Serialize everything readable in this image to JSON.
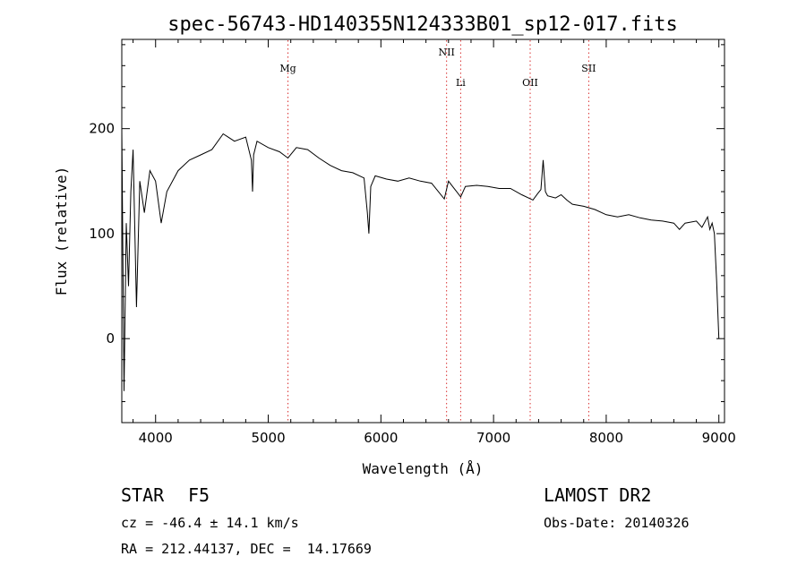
{
  "chart_data": {
    "type": "line",
    "title": "spec-56743-HD140355N124333B01_sp12-017.fits",
    "xlabel": "Wavelength (Å)",
    "ylabel": "Flux (relative)",
    "xlim": [
      3700,
      9050
    ],
    "ylim": [
      -80,
      285
    ],
    "xticks": [
      4000,
      5000,
      6000,
      7000,
      8000,
      9000
    ],
    "yticks": [
      0,
      100,
      200
    ],
    "grid": false,
    "line_color": "#000000",
    "marker_color": "#d93030",
    "lines": [
      {
        "label": "Mg",
        "wavelength": 5175,
        "label_level": "high"
      },
      {
        "label": "NII",
        "wavelength": 6583,
        "label_level": "top"
      },
      {
        "label": "Li",
        "wavelength": 6708,
        "label_level": "low"
      },
      {
        "label": "OII",
        "wavelength": 7325,
        "label_level": "low"
      },
      {
        "label": "SII",
        "wavelength": 7845,
        "label_level": "high"
      }
    ],
    "series": [
      {
        "x": [
          3700,
          3720,
          3740,
          3760,
          3780,
          3800,
          3830,
          3860,
          3900,
          3950,
          4000,
          4050,
          4100,
          4200,
          4300,
          4400,
          4500,
          4600,
          4700,
          4800,
          4850,
          4861,
          4870,
          4900,
          5000,
          5100,
          5175,
          5250,
          5350,
          5450,
          5550,
          5650,
          5750,
          5850,
          5880,
          5893,
          5910,
          5950,
          6050,
          6150,
          6250,
          6350,
          6450,
          6563,
          6600,
          6708,
          6750,
          6850,
          6950,
          7050,
          7150,
          7250,
          7350,
          7390,
          7420,
          7440,
          7460,
          7480,
          7550,
          7600,
          7650,
          7700,
          7800,
          7900,
          8000,
          8100,
          8200,
          8300,
          8400,
          8500,
          8600,
          8650,
          8700,
          8800,
          8850,
          8900,
          8920,
          8940,
          8960,
          8980,
          9000
        ],
        "y": [
          200,
          -50,
          110,
          50,
          140,
          180,
          30,
          150,
          120,
          160,
          150,
          110,
          140,
          160,
          170,
          175,
          180,
          195,
          188,
          192,
          170,
          140,
          175,
          188,
          182,
          178,
          172,
          182,
          180,
          172,
          165,
          160,
          158,
          153,
          120,
          100,
          145,
          155,
          152,
          150,
          153,
          150,
          148,
          133,
          150,
          135,
          145,
          146,
          145,
          143,
          143,
          137,
          132,
          138,
          142,
          170,
          140,
          136,
          134,
          137,
          132,
          128,
          126,
          123,
          118,
          116,
          118,
          115,
          113,
          112,
          110,
          104,
          110,
          112,
          106,
          116,
          104,
          110,
          100,
          55,
          0
        ]
      }
    ]
  },
  "footer": {
    "class_label": "STAR",
    "subclass": "F5",
    "redshift": "cz = -46.4 ± 14.1 km/s",
    "coordinates": "RA = 212.44137, DEC =  14.17669",
    "survey": "LAMOST DR2",
    "obs_date": "Obs-Date: 20140326"
  }
}
